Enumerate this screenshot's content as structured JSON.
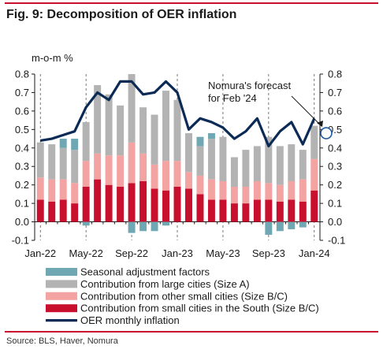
{
  "figure": {
    "title": "Fig. 9: Decomposition of OER inflation",
    "source": "Source: BLS, Haver, Nomura"
  },
  "chart_data": {
    "type": "bar",
    "ylabel": "m-o-m %",
    "ylim": [
      -0.1,
      0.8
    ],
    "yticks": [
      "0.8",
      "0.7",
      "0.6",
      "0.5",
      "0.4",
      "0.3",
      "0.2",
      "0.1",
      "0.0",
      "-0.1"
    ],
    "xtick_labels": [
      "Jan-22",
      "May-22",
      "Sep-22",
      "Jan-23",
      "May-23",
      "Sep-23",
      "Jan-24"
    ],
    "xtick_index": [
      0,
      4,
      8,
      12,
      16,
      20,
      24
    ],
    "grid": false,
    "legend_placement": "bottom",
    "categories": [
      "Jan-22",
      "Feb-22",
      "Mar-22",
      "Apr-22",
      "May-22",
      "Jun-22",
      "Jul-22",
      "Aug-22",
      "Sep-22",
      "Oct-22",
      "Nov-22",
      "Dec-22",
      "Jan-23",
      "Feb-23",
      "Mar-23",
      "Apr-23",
      "May-23",
      "Jun-23",
      "Jul-23",
      "Aug-23",
      "Sep-23",
      "Oct-23",
      "Nov-23",
      "Dec-23",
      "Jan-24"
    ],
    "series": [
      {
        "name": "Seasonal adjustment factors",
        "color": "#6fa8b3",
        "kind": "bar",
        "values": [
          0.0,
          0.0,
          0.05,
          0.06,
          -0.02,
          0.0,
          0.0,
          0.0,
          -0.06,
          -0.05,
          -0.05,
          -0.02,
          0.0,
          0.0,
          0.05,
          0.03,
          0.0,
          0.0,
          0.0,
          0.0,
          -0.07,
          -0.05,
          -0.04,
          -0.03,
          0.0
        ]
      },
      {
        "name": "Contribution from large cities (Size A)",
        "color": "#b3b3b3",
        "kind": "bar",
        "values": [
          0.19,
          0.19,
          0.17,
          0.18,
          0.21,
          0.37,
          0.33,
          0.27,
          0.37,
          0.25,
          0.27,
          0.38,
          0.33,
          0.21,
          0.16,
          0.22,
          0.24,
          0.16,
          0.2,
          0.19,
          0.25,
          0.21,
          0.2,
          0.16,
          0.18
        ]
      },
      {
        "name": "Contribution from other small cities (Size B/C)",
        "color": "#f4a3a3",
        "kind": "bar",
        "values": [
          0.12,
          0.12,
          0.11,
          0.11,
          0.14,
          0.14,
          0.16,
          0.17,
          0.22,
          0.15,
          0.13,
          0.16,
          0.14,
          0.09,
          0.1,
          0.11,
          0.1,
          0.09,
          0.09,
          0.1,
          0.09,
          0.09,
          0.1,
          0.12,
          0.17
        ]
      },
      {
        "name": "Contribution from small cities in the South (Size B/C)",
        "color": "#c8102e",
        "kind": "bar",
        "values": [
          0.12,
          0.11,
          0.12,
          0.1,
          0.19,
          0.23,
          0.2,
          0.19,
          0.21,
          0.22,
          0.18,
          0.17,
          0.19,
          0.18,
          0.15,
          0.12,
          0.12,
          0.1,
          0.1,
          0.12,
          0.12,
          0.11,
          0.12,
          0.11,
          0.17
        ]
      },
      {
        "name": "OER monthly inflation",
        "color": "#0b2a55",
        "kind": "line",
        "values": [
          0.44,
          0.45,
          0.47,
          0.49,
          0.62,
          0.7,
          0.66,
          0.76,
          0.76,
          0.69,
          0.7,
          0.76,
          0.7,
          0.5,
          0.56,
          0.54,
          0.51,
          0.45,
          0.49,
          0.56,
          0.41,
          0.49,
          0.54,
          0.42,
          0.56
        ]
      }
    ],
    "forecast": {
      "label_line1": "Nomura's forecast",
      "label_line2": "for Feb '24",
      "value": 0.48
    }
  }
}
